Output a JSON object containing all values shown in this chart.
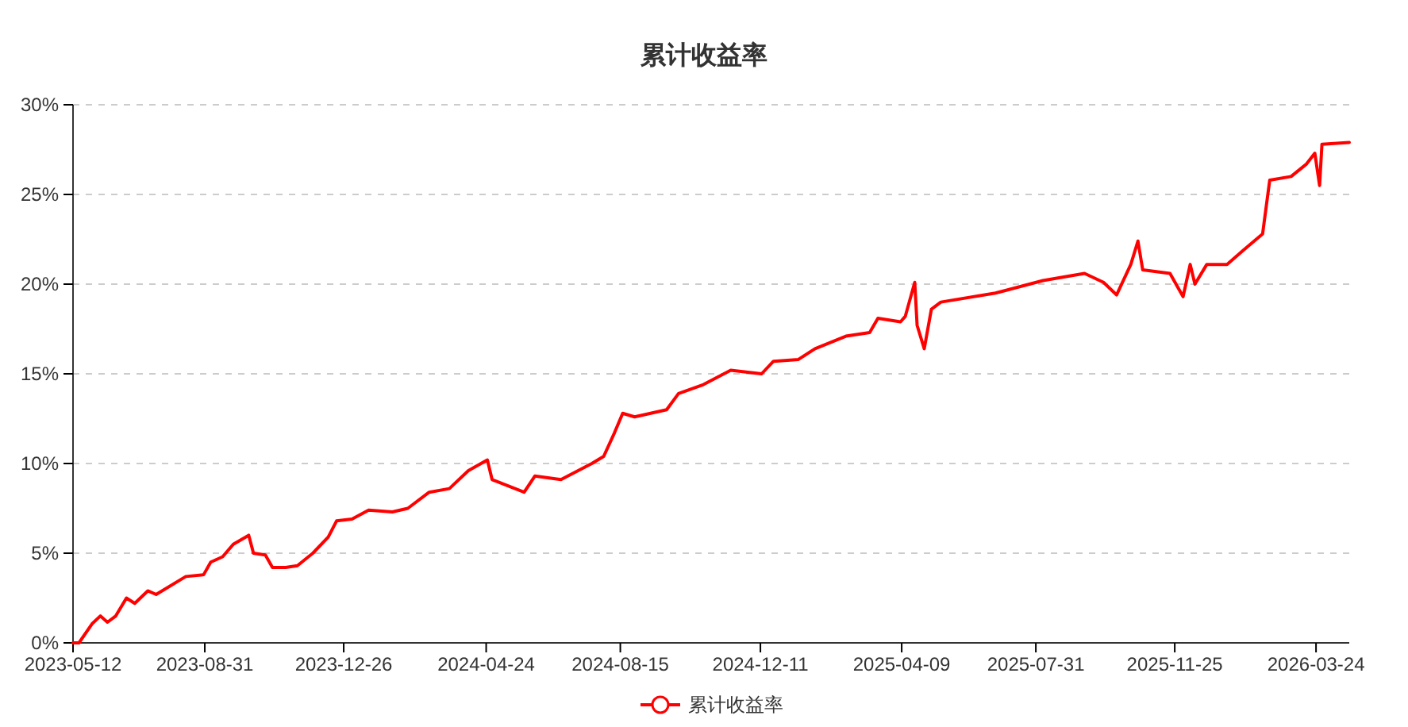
{
  "chart_data": {
    "type": "line",
    "title": "累计收益率",
    "x": [
      "2023-05-12",
      "2023-05-17",
      "2023-05-28",
      "2023-06-04",
      "2023-06-10",
      "2023-06-17",
      "2023-06-26",
      "2023-07-03",
      "2023-07-14",
      "2023-07-21",
      "2023-08-15",
      "2023-08-30",
      "2023-09-05",
      "2023-09-15",
      "2023-09-24",
      "2023-10-07",
      "2023-10-11",
      "2023-10-21",
      "2023-10-27",
      "2023-11-07",
      "2023-11-17",
      "2023-11-30",
      "2023-12-13",
      "2023-12-20",
      "2024-01-02",
      "2024-01-16",
      "2024-02-05",
      "2024-02-18",
      "2024-03-07",
      "2024-03-24",
      "2024-04-09",
      "2024-04-25",
      "2024-04-29",
      "2024-05-03",
      "2024-05-26",
      "2024-06-04",
      "2024-06-26",
      "2024-07-22",
      "2024-08-01",
      "2024-08-10",
      "2024-08-17",
      "2024-08-27",
      "2024-09-23",
      "2024-10-03",
      "2024-10-24",
      "2024-11-16",
      "2024-12-12",
      "2024-12-22",
      "2025-01-12",
      "2025-01-26",
      "2025-02-21",
      "2025-03-13",
      "2025-03-20",
      "2025-04-08",
      "2025-04-12",
      "2025-04-20",
      "2025-04-22",
      "2025-04-28",
      "2025-05-04",
      "2025-05-12",
      "2025-06-27",
      "2025-08-06",
      "2025-09-10",
      "2025-09-26",
      "2025-10-07",
      "2025-10-19",
      "2025-10-25",
      "2025-10-29",
      "2025-11-21",
      "2025-12-02",
      "2025-12-08",
      "2025-12-12",
      "2025-12-22",
      "2026-01-08",
      "2026-01-22",
      "2026-02-07",
      "2026-02-13",
      "2026-03-03",
      "2026-03-16",
      "2026-03-23",
      "2026-03-27",
      "2026-03-29",
      "2026-04-21"
    ],
    "series": [
      {
        "name": "累计收益率",
        "color": "#ff0000",
        "values": [
          0,
          0,
          1.06,
          1.5,
          1.15,
          1.5,
          2.5,
          2.2,
          2.9,
          2.7,
          3.7,
          3.8,
          4.5,
          4.8,
          5.5,
          6.0,
          5.0,
          4.9,
          4.2,
          4.2,
          4.3,
          5.0,
          5.9,
          6.8,
          6.9,
          7.4,
          7.3,
          7.5,
          8.4,
          8.6,
          9.6,
          10.2,
          9.1,
          9.0,
          8.4,
          9.3,
          9.1,
          10.0,
          10.4,
          11.7,
          12.8,
          12.6,
          13.0,
          13.9,
          14.4,
          15.2,
          15.0,
          15.7,
          15.8,
          16.4,
          17.1,
          17.3,
          18.1,
          17.9,
          18.2,
          20.1,
          17.7,
          16.4,
          18.6,
          19.0,
          19.5,
          20.2,
          20.6,
          20.1,
          19.4,
          21.1,
          22.4,
          20.8,
          20.6,
          19.3,
          21.1,
          20.0,
          21.1,
          21.1,
          21.9,
          22.8,
          25.8,
          26.0,
          26.7,
          27.3,
          25.5,
          27.8,
          27.9
        ]
      }
    ],
    "xlim": [
      "2023-05-12",
      "2026-04-21"
    ],
    "xticks": [
      {
        "value": "2023-05-12",
        "label": "2023-05-12"
      },
      {
        "value": "2023-08-31",
        "label": "2023-08-31"
      },
      {
        "value": "2023-12-26",
        "label": "2023-12-26"
      },
      {
        "value": "2024-04-24",
        "label": "2024-04-24"
      },
      {
        "value": "2024-08-15",
        "label": "2024-08-15"
      },
      {
        "value": "2024-12-11",
        "label": "2024-12-11"
      },
      {
        "value": "2025-04-09",
        "label": "2025-04-09"
      },
      {
        "value": "2025-07-31",
        "label": "2025-07-31"
      },
      {
        "value": "2025-11-25",
        "label": "2025-11-25"
      },
      {
        "value": "2026-03-24",
        "label": "2026-03-24"
      }
    ],
    "ylim": [
      0,
      30
    ],
    "yticks": [
      {
        "value": 0,
        "label": "0%"
      },
      {
        "value": 5,
        "label": "5%"
      },
      {
        "value": 10,
        "label": "10%"
      },
      {
        "value": 15,
        "label": "15%"
      },
      {
        "value": 20,
        "label": "20%"
      },
      {
        "value": 25,
        "label": "25%"
      },
      {
        "value": 30,
        "label": "30%"
      }
    ],
    "grid": "y",
    "legend": "bottom",
    "marker": "none",
    "line_style": "solid"
  }
}
